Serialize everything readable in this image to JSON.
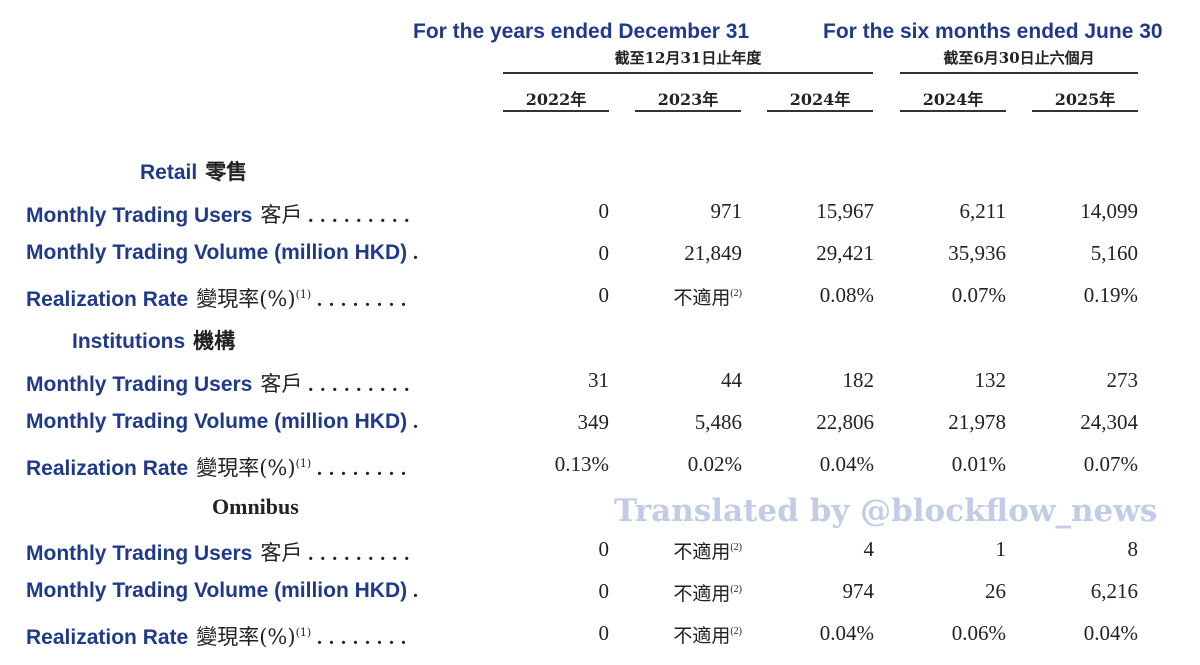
{
  "header": {
    "years_title": "For the years ended December 31",
    "years_sub": "截至12月31日止年度",
    "six_title": "For the six months ended June 30",
    "six_sub": "截至6月30日止六個月",
    "columns": [
      "2022年",
      "2023年",
      "2024年",
      "2024年",
      "2025年"
    ]
  },
  "labels": {
    "users_en": "Monthly Trading Users",
    "users_zh": "客戶",
    "volume_en": "Monthly Trading Volume (million HKD)",
    "rate_en": "Realization Rate",
    "rate_zh": "變現率(%)",
    "rate_note": "(1)",
    "na_text": "不適用",
    "na_note": "(2)",
    "dots_long": ". . . . . . . . .",
    "dots_short": ".",
    "dots_rate": ". . . . . . . ."
  },
  "sections": {
    "retail": {
      "title_en": "Retail",
      "title_zh": "零售"
    },
    "institutions": {
      "title_en": "Institutions",
      "title_zh": "機構"
    },
    "omnibus": {
      "title_en": "Omnibus"
    }
  },
  "rows": [
    [
      "0",
      "971",
      "15,967",
      "6,211",
      "14,099"
    ],
    [
      "0",
      "21,849",
      "29,421",
      "35,936",
      "5,160"
    ],
    [
      "0",
      "不適用",
      "0.08%",
      "0.07%",
      "0.19%"
    ],
    [
      "31",
      "44",
      "182",
      "132",
      "273"
    ],
    [
      "349",
      "5,486",
      "22,806",
      "21,978",
      "24,304"
    ],
    [
      "0.13%",
      "0.02%",
      "0.04%",
      "0.01%",
      "0.07%"
    ],
    [
      "0",
      "不適用",
      "4",
      "1",
      "8"
    ],
    [
      "0",
      "不適用",
      "974",
      "26",
      "6,216"
    ],
    [
      "0",
      "不適用",
      "0.04%",
      "0.06%",
      "0.04%"
    ]
  ],
  "watermark": "Translated by @blockflow_news"
}
